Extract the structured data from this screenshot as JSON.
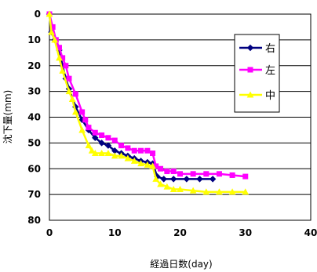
{
  "chart_data": {
    "type": "line",
    "xlabel": "経過日数(day)",
    "ylabel": "沈下量(mm)",
    "xlim": [
      0,
      40
    ],
    "ylim": [
      0,
      80
    ],
    "y_inverted": true,
    "x_ticks": [
      0,
      10,
      20,
      30,
      40
    ],
    "y_ticks": [
      0,
      10,
      20,
      30,
      40,
      50,
      60,
      70,
      80
    ],
    "grid": "horizontal",
    "legend_position": "top-right",
    "series": [
      {
        "name": "右",
        "color": "#000080",
        "marker": "diamond",
        "points": [
          [
            0,
            0
          ],
          [
            0.3,
            7
          ],
          [
            0.8,
            10
          ],
          [
            1.5,
            14
          ],
          [
            2,
            20
          ],
          [
            2.5,
            25
          ],
          [
            3,
            29
          ],
          [
            4,
            36
          ],
          [
            5,
            41
          ],
          [
            6,
            45
          ],
          [
            7,
            48
          ],
          [
            8,
            50
          ],
          [
            9,
            51
          ],
          [
            10,
            53
          ],
          [
            11,
            54
          ],
          [
            12,
            55
          ],
          [
            13,
            56
          ],
          [
            14,
            57
          ],
          [
            15,
            57.5
          ],
          [
            15.8,
            58
          ],
          [
            16.5,
            63
          ],
          [
            17.5,
            64
          ],
          [
            19,
            64
          ],
          [
            21,
            64
          ],
          [
            23,
            64
          ],
          [
            25,
            64
          ]
        ]
      },
      {
        "name": "左",
        "color": "#ff00ff",
        "marker": "square",
        "points": [
          [
            0,
            0
          ],
          [
            0.5,
            5
          ],
          [
            1,
            10
          ],
          [
            1.5,
            13
          ],
          [
            2,
            17
          ],
          [
            2.5,
            20
          ],
          [
            3,
            25
          ],
          [
            4,
            31
          ],
          [
            5,
            38
          ],
          [
            5.5,
            41
          ],
          [
            6,
            44
          ],
          [
            7,
            46
          ],
          [
            8,
            47
          ],
          [
            9,
            48
          ],
          [
            10,
            49
          ],
          [
            11,
            51
          ],
          [
            12,
            52
          ],
          [
            13,
            53
          ],
          [
            14,
            53
          ],
          [
            15,
            53
          ],
          [
            15.8,
            54
          ],
          [
            16.3,
            59
          ],
          [
            17,
            60
          ],
          [
            18,
            61
          ],
          [
            19,
            61
          ],
          [
            20,
            62
          ],
          [
            22,
            62
          ],
          [
            24,
            62
          ],
          [
            26,
            62
          ],
          [
            28,
            62.5
          ],
          [
            30,
            63
          ]
        ]
      },
      {
        "name": "中",
        "color": "#ffff00",
        "marker": "triangle",
        "points": [
          [
            0,
            0
          ],
          [
            0.3,
            7
          ],
          [
            0.8,
            10
          ],
          [
            1.5,
            17
          ],
          [
            2,
            22
          ],
          [
            3,
            30
          ],
          [
            3.5,
            33
          ],
          [
            4,
            38
          ],
          [
            5,
            45
          ],
          [
            6,
            51
          ],
          [
            6.5,
            53
          ],
          [
            7,
            54
          ],
          [
            8,
            54
          ],
          [
            9,
            54
          ],
          [
            10,
            55
          ],
          [
            11,
            55
          ],
          [
            12,
            56
          ],
          [
            13,
            57
          ],
          [
            14,
            58
          ],
          [
            15,
            58.5
          ],
          [
            15.8,
            59
          ],
          [
            16.3,
            64
          ],
          [
            17,
            66
          ],
          [
            18,
            67
          ],
          [
            19,
            68
          ],
          [
            20,
            68
          ],
          [
            22,
            68.5
          ],
          [
            24,
            69
          ],
          [
            26,
            69
          ],
          [
            28,
            69
          ],
          [
            30,
            69
          ]
        ]
      }
    ]
  }
}
